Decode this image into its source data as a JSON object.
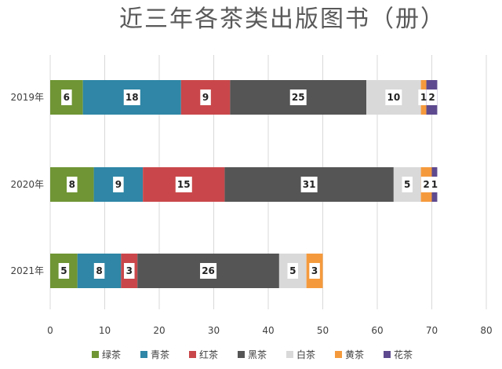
{
  "chart_data": {
    "type": "bar",
    "orientation": "horizontal",
    "stacked": true,
    "title": "近三年各茶类出版图书（册）",
    "categories": [
      "2019年",
      "2020年",
      "2021年"
    ],
    "series": [
      {
        "name": "绿茶",
        "color": "#6f9534",
        "values": [
          6,
          8,
          5
        ]
      },
      {
        "name": "青茶",
        "color": "#2f86a6",
        "values": [
          18,
          9,
          8
        ]
      },
      {
        "name": "红茶",
        "color": "#c9474a",
        "values": [
          9,
          15,
          3
        ]
      },
      {
        "name": "黑茶",
        "color": "#555555",
        "values": [
          25,
          31,
          26
        ]
      },
      {
        "name": "白茶",
        "color": "#d9d9d9",
        "values": [
          10,
          5,
          5
        ]
      },
      {
        "name": "黄茶",
        "color": "#f59a3c",
        "values": [
          1,
          2,
          3
        ]
      },
      {
        "name": "花茶",
        "color": "#5e4a8f",
        "values": [
          2,
          1,
          0
        ]
      }
    ],
    "xlim": [
      0,
      80
    ],
    "xticks": [
      0,
      10,
      20,
      30,
      40,
      50,
      60,
      70,
      80
    ],
    "grid": "vertical",
    "legend": "bottom"
  }
}
